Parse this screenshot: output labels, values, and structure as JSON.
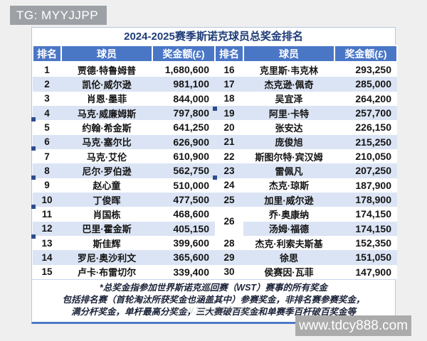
{
  "badge": {
    "text": "TG: MYYJJPP"
  },
  "watermark": {
    "text": "www.tdcy888.com"
  },
  "colors": {
    "header_blue": "#4a76c6",
    "stripe_blue": "#dbe4f4",
    "title_navy": "#1e3c78",
    "bottom_border_blue": "#4d79c7",
    "badge_gray": "#9da1a6",
    "watermark_gray": "#ababab",
    "page_bg": "#efefef"
  },
  "table": {
    "title": "2024-2025赛季斯诺克球员总奖金排名",
    "headers": [
      "排名",
      "球员",
      "奖金额(£)",
      "排名",
      "球员",
      "奖金额(£)"
    ],
    "left_rows": [
      {
        "rank": "1",
        "player": "贾德·特鲁姆普",
        "prize": "1,680,600"
      },
      {
        "rank": "2",
        "player": "凯伦·威尔逊",
        "prize": "981,100"
      },
      {
        "rank": "3",
        "player": "肖恩·墨菲",
        "prize": "844,000"
      },
      {
        "rank": "4",
        "player": "马克·威廉姆斯",
        "prize": "797,800"
      },
      {
        "rank": "5",
        "player": "约翰·希金斯",
        "prize": "641,250"
      },
      {
        "rank": "6",
        "player": "马克·塞尔比",
        "prize": "626,900"
      },
      {
        "rank": "7",
        "player": "马克·艾伦",
        "prize": "610,900"
      },
      {
        "rank": "8",
        "player": "尼尔·罗伯逊",
        "prize": "562,750"
      },
      {
        "rank": "9",
        "player": "赵心童",
        "prize": "510,000"
      },
      {
        "rank": "10",
        "player": "丁俊晖",
        "prize": "477,500"
      },
      {
        "rank": "11",
        "player": "肖国栋",
        "prize": "468,600"
      },
      {
        "rank": "12",
        "player": "巴里·霍金斯",
        "prize": "405,150"
      },
      {
        "rank": "13",
        "player": "斯佳辉",
        "prize": "399,600"
      },
      {
        "rank": "14",
        "player": "罗尼·奥沙利文",
        "prize": "365,600"
      },
      {
        "rank": "15",
        "player": "卢卡·布雷切尔",
        "prize": "339,400"
      }
    ],
    "right_rows": [
      {
        "rank": "16",
        "player": "克里斯·韦克林",
        "prize": "293,250"
      },
      {
        "rank": "17",
        "player": "杰克逊·佩奇",
        "prize": "285,000"
      },
      {
        "rank": "18",
        "player": "吴宜泽",
        "prize": "264,200"
      },
      {
        "rank": "19",
        "player": "阿里·卡特",
        "prize": "257,700"
      },
      {
        "rank": "20",
        "player": "张安达",
        "prize": "226,150"
      },
      {
        "rank": "21",
        "player": "庞俊旭",
        "prize": "215,250"
      },
      {
        "rank": "22",
        "player": "斯图尔特·宾汉姆",
        "prize": "210,050"
      },
      {
        "rank": "23",
        "player": "雷佩凡",
        "prize": "207,250"
      },
      {
        "rank": "24",
        "player": "杰克·琼斯",
        "prize": "187,900"
      },
      {
        "rank": "25",
        "player": "加里·威尔逊",
        "prize": "178,900"
      },
      {
        "rank": "26",
        "rank_rowspan": 2,
        "player": "乔·奥康纳",
        "prize": "174,150"
      },
      {
        "rank": null,
        "player": "汤姆·福德",
        "prize": "174,150"
      },
      {
        "rank": "28",
        "player": "杰克·利索夫斯基",
        "prize": "152,350"
      },
      {
        "rank": "29",
        "player": "徐思",
        "prize": "151,050"
      },
      {
        "rank": "30",
        "player": "侯赛因·瓦菲",
        "prize": "147,900"
      }
    ],
    "footnote_lines": [
      "*总奖金指参加世界斯诺克巡回赛（WST）赛事的所有奖金",
      "包括排名赛（首轮淘汰所获奖金也涵盖其中）参赛奖金，非排名赛参赛奖金，",
      "满分杆奖金，单杆最高分奖金，三大赛破百奖金和单赛季百杆破百奖金等"
    ]
  }
}
